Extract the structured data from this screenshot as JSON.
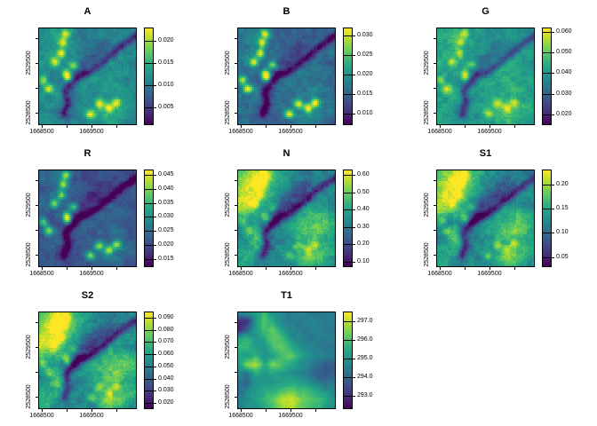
{
  "figure": {
    "background": "#ffffff",
    "description": "Grid of 8 raster map panels (multiband scene) with viridis legends"
  },
  "colormap": {
    "name": "viridis",
    "stops": [
      "#440154",
      "#472d7b",
      "#3b528b",
      "#2c728e",
      "#21918c",
      "#27ad81",
      "#5ec962",
      "#aadc32",
      "#fde725"
    ]
  },
  "axis": {
    "x_tick_labels": [
      "1668500",
      "",
      "1669500",
      ""
    ],
    "x_tick_values": [
      1668500,
      1669000,
      1669500,
      1670000
    ],
    "y_tick_labels": [
      "",
      "2529500",
      "",
      "2528500"
    ],
    "y_tick_values": [
      2530000,
      2529500,
      2529000,
      2528500
    ]
  },
  "chart_data": {
    "type": "heatmap",
    "colormap": "viridis",
    "layout": "3 columns x 3 rows, last cell empty",
    "x_range": [
      1668430,
      1670410
    ],
    "y_range": [
      2528250,
      2530210
    ],
    "panels": [
      {
        "title": "A",
        "pattern": "vis",
        "seed": 1,
        "value_range": [
          0.001,
          0.023
        ],
        "legend_tick_labels": [
          "0.005",
          "0.010",
          "0.015",
          "0.020"
        ],
        "legend_tick_values": [
          0.005,
          0.01,
          0.015,
          0.02
        ],
        "style": {
          "base": 0.02,
          "gain": 0.95,
          "hot": 0.5,
          "noise": 0.07,
          "valley": true
        }
      },
      {
        "title": "B",
        "pattern": "vis",
        "seed": 2,
        "value_range": [
          0.007,
          0.032
        ],
        "legend_tick_labels": [
          "0.010",
          "0.015",
          "0.020",
          "0.025",
          "0.030"
        ],
        "legend_tick_values": [
          0.01,
          0.015,
          0.02,
          0.025,
          0.03
        ],
        "style": {
          "base": -0.05,
          "gain": 0.85,
          "hot": 0.6,
          "noise": 0.07,
          "valley": true
        }
      },
      {
        "title": "G",
        "pattern": "vis",
        "seed": 3,
        "value_range": [
          0.015,
          0.062
        ],
        "legend_tick_labels": [
          "0.020",
          "0.030",
          "0.040",
          "0.050",
          "0.060"
        ],
        "legend_tick_values": [
          0.02,
          0.03,
          0.04,
          0.05,
          0.06
        ],
        "style": {
          "base": 0.08,
          "gain": 1.0,
          "hot": 0.35,
          "noise": 0.07,
          "valley": true
        }
      },
      {
        "title": "R",
        "pattern": "vis",
        "seed": 4,
        "value_range": [
          0.012,
          0.047
        ],
        "legend_tick_labels": [
          "0.015",
          "0.020",
          "0.025",
          "0.030",
          "0.035",
          "0.040",
          "0.045"
        ],
        "legend_tick_values": [
          0.015,
          0.02,
          0.025,
          0.03,
          0.035,
          0.04,
          0.045
        ],
        "style": {
          "base": -0.1,
          "gain": 0.8,
          "hot": 0.55,
          "noise": 0.06,
          "valley": true
        }
      },
      {
        "title": "N",
        "pattern": "nir",
        "seed": 5,
        "value_range": [
          0.07,
          0.63
        ],
        "legend_tick_labels": [
          "0.10",
          "0.20",
          "0.30",
          "0.40",
          "0.50",
          "0.60"
        ],
        "legend_tick_values": [
          0.1,
          0.2,
          0.3,
          0.4,
          0.5,
          0.6
        ],
        "style": {
          "base": 0.0,
          "gain": 1.15,
          "hot": 0.3,
          "noise": 0.08,
          "valley": true
        }
      },
      {
        "title": "S1",
        "pattern": "nir",
        "seed": 6,
        "value_range": [
          0.03,
          0.23
        ],
        "legend_tick_labels": [
          "0.05",
          "0.10",
          "0.15",
          "0.20"
        ],
        "legend_tick_values": [
          0.05,
          0.1,
          0.15,
          0.2
        ],
        "style": {
          "base": 0.0,
          "gain": 1.15,
          "hot": 0.3,
          "noise": 0.08,
          "valley": true
        }
      },
      {
        "title": "S2",
        "pattern": "nir",
        "seed": 7,
        "value_range": [
          0.015,
          0.095
        ],
        "legend_tick_labels": [
          "0.020",
          "0.030",
          "0.040",
          "0.050",
          "0.060",
          "0.070",
          "0.080",
          "0.090"
        ],
        "legend_tick_values": [
          0.02,
          0.03,
          0.04,
          0.05,
          0.06,
          0.07,
          0.08,
          0.09
        ],
        "style": {
          "base": 0.02,
          "gain": 1.15,
          "hot": 0.3,
          "noise": 0.08,
          "valley": true
        }
      },
      {
        "title": "T1",
        "pattern": "t1",
        "seed": 8,
        "value_range": [
          292.3,
          297.5
        ],
        "legend_tick_labels": [
          "293.0",
          "294.0",
          "295.0",
          "296.0",
          "297.0"
        ],
        "legend_tick_values": [
          293.0,
          294.0,
          295.0,
          296.0,
          297.0
        ],
        "style": {
          "base": 0.0,
          "gain": 1.0,
          "hot": 0.0,
          "noise": 0.03,
          "valley": false
        }
      }
    ],
    "patterns": {
      "vis": [
        [
          0.5,
          0.5,
          0.55,
          0.5,
          0.45,
          0.45,
          0.4,
          0.42,
          0.45,
          0.42,
          0.4,
          0.45
        ],
        [
          0.5,
          0.55,
          0.6,
          0.5,
          0.45,
          0.4,
          0.42,
          0.45,
          0.4,
          0.42,
          0.45,
          0.42
        ],
        [
          0.45,
          0.5,
          0.55,
          0.45,
          0.5,
          0.45,
          0.4,
          0.3,
          0.35,
          0.45,
          0.5,
          0.45
        ],
        [
          0.5,
          0.55,
          0.5,
          0.45,
          0.5,
          0.4,
          0.25,
          0.3,
          0.45,
          0.5,
          0.45,
          0.5
        ],
        [
          0.55,
          0.5,
          0.45,
          0.5,
          0.35,
          0.25,
          0.35,
          0.5,
          0.55,
          0.5,
          0.45,
          0.4
        ],
        [
          0.5,
          0.45,
          0.5,
          0.4,
          0.25,
          0.35,
          0.5,
          0.55,
          0.5,
          0.55,
          0.5,
          0.45
        ],
        [
          0.4,
          0.35,
          0.45,
          0.3,
          0.35,
          0.5,
          0.55,
          0.5,
          0.55,
          0.5,
          0.45,
          0.5
        ],
        [
          0.45,
          0.5,
          0.55,
          0.4,
          0.45,
          0.5,
          0.45,
          0.5,
          0.55,
          0.6,
          0.5,
          0.45
        ],
        [
          0.5,
          0.45,
          0.55,
          0.45,
          0.4,
          0.45,
          0.5,
          0.55,
          0.5,
          0.45,
          0.5,
          0.45
        ],
        [
          0.45,
          0.5,
          0.45,
          0.4,
          0.45,
          0.5,
          0.45,
          0.5,
          0.55,
          0.6,
          0.55,
          0.5
        ],
        [
          0.5,
          0.45,
          0.4,
          0.35,
          0.4,
          0.45,
          0.5,
          0.6,
          0.65,
          0.6,
          0.5,
          0.45
        ],
        [
          0.45,
          0.5,
          0.45,
          0.4,
          0.45,
          0.4,
          0.45,
          0.5,
          0.55,
          0.5,
          0.45,
          0.4
        ]
      ],
      "nir": [
        [
          0.6,
          0.65,
          0.8,
          0.75,
          0.55,
          0.5,
          0.45,
          0.4,
          0.35,
          0.4,
          0.35,
          0.4
        ],
        [
          0.65,
          0.75,
          0.95,
          0.85,
          0.6,
          0.5,
          0.4,
          0.35,
          0.3,
          0.35,
          0.4,
          0.35
        ],
        [
          0.7,
          0.8,
          0.9,
          0.65,
          0.55,
          0.45,
          0.35,
          0.25,
          0.2,
          0.35,
          0.45,
          0.4
        ],
        [
          0.75,
          0.85,
          0.75,
          0.6,
          0.5,
          0.35,
          0.2,
          0.15,
          0.3,
          0.45,
          0.4,
          0.45
        ],
        [
          0.8,
          0.75,
          0.65,
          0.55,
          0.35,
          0.2,
          0.15,
          0.35,
          0.5,
          0.45,
          0.4,
          0.35
        ],
        [
          0.65,
          0.6,
          0.55,
          0.4,
          0.2,
          0.15,
          0.35,
          0.5,
          0.55,
          0.6,
          0.55,
          0.5
        ],
        [
          0.4,
          0.35,
          0.45,
          0.25,
          0.15,
          0.35,
          0.5,
          0.55,
          0.6,
          0.65,
          0.6,
          0.55
        ],
        [
          0.35,
          0.4,
          0.6,
          0.35,
          0.4,
          0.45,
          0.5,
          0.55,
          0.65,
          0.7,
          0.6,
          0.5
        ],
        [
          0.4,
          0.45,
          0.65,
          0.45,
          0.35,
          0.4,
          0.45,
          0.55,
          0.6,
          0.55,
          0.5,
          0.45
        ],
        [
          0.45,
          0.5,
          0.55,
          0.4,
          0.35,
          0.45,
          0.4,
          0.45,
          0.5,
          0.55,
          0.6,
          0.55
        ],
        [
          0.5,
          0.55,
          0.45,
          0.35,
          0.4,
          0.35,
          0.4,
          0.6,
          0.75,
          0.7,
          0.55,
          0.45
        ],
        [
          0.45,
          0.5,
          0.4,
          0.35,
          0.45,
          0.4,
          0.35,
          0.5,
          0.55,
          0.5,
          0.45,
          0.4
        ]
      ],
      "t1": [
        [
          0.45,
          0.5,
          0.55,
          0.7,
          0.5,
          0.45,
          0.42,
          0.45,
          0.42,
          0.4,
          0.42,
          0.45
        ],
        [
          0.12,
          0.15,
          0.5,
          0.75,
          0.6,
          0.45,
          0.42,
          0.4,
          0.45,
          0.42,
          0.4,
          0.42
        ],
        [
          0.1,
          0.3,
          0.55,
          0.7,
          0.75,
          0.55,
          0.45,
          0.42,
          0.4,
          0.45,
          0.42,
          0.4
        ],
        [
          0.6,
          0.65,
          0.5,
          0.6,
          0.75,
          0.7,
          0.5,
          0.45,
          0.42,
          0.4,
          0.42,
          0.45
        ],
        [
          0.65,
          0.7,
          0.55,
          0.5,
          0.7,
          0.75,
          0.65,
          0.5,
          0.45,
          0.42,
          0.4,
          0.42
        ],
        [
          0.6,
          0.55,
          0.65,
          0.5,
          0.55,
          0.7,
          0.75,
          0.6,
          0.5,
          0.45,
          0.42,
          0.4
        ],
        [
          0.5,
          0.8,
          0.9,
          0.6,
          0.8,
          0.7,
          0.6,
          0.5,
          0.45,
          0.35,
          0.3,
          0.3
        ],
        [
          0.45,
          0.4,
          0.6,
          0.55,
          0.6,
          0.55,
          0.5,
          0.45,
          0.4,
          0.3,
          0.28,
          0.3
        ],
        [
          0.4,
          0.3,
          0.5,
          0.55,
          0.5,
          0.55,
          0.6,
          0.55,
          0.5,
          0.4,
          0.35,
          0.4
        ],
        [
          0.35,
          0.45,
          0.55,
          0.6,
          0.65,
          0.7,
          0.75,
          0.7,
          0.68,
          0.6,
          0.5,
          0.45
        ],
        [
          0.4,
          0.5,
          0.55,
          0.65,
          0.75,
          0.9,
          0.95,
          0.8,
          0.75,
          0.7,
          0.6,
          0.5
        ],
        [
          0.42,
          0.48,
          0.5,
          0.6,
          0.7,
          0.85,
          0.9,
          0.78,
          0.7,
          0.65,
          0.55,
          0.48
        ]
      ]
    },
    "features": {
      "valley_path": [
        [
          1.0,
          0.08
        ],
        [
          0.86,
          0.18
        ],
        [
          0.72,
          0.3
        ],
        [
          0.6,
          0.4
        ],
        [
          0.5,
          0.465
        ],
        [
          0.42,
          0.49
        ],
        [
          0.335,
          0.57
        ],
        [
          0.28,
          0.66
        ],
        [
          0.3,
          0.78
        ],
        [
          0.26,
          0.88
        ]
      ],
      "valley_strength": 0.33,
      "valley_width": 0.03,
      "hotspots": [
        [
          0.28,
          0.055
        ],
        [
          0.25,
          0.15
        ],
        [
          0.23,
          0.26
        ],
        [
          0.16,
          0.35
        ],
        [
          0.36,
          0.385
        ],
        [
          0.285,
          0.47
        ],
        [
          0.3,
          0.52
        ],
        [
          0.045,
          0.54
        ],
        [
          0.1,
          0.63
        ],
        [
          0.62,
          0.79
        ],
        [
          0.72,
          0.83
        ],
        [
          0.8,
          0.77
        ],
        [
          0.53,
          0.89
        ]
      ],
      "hotspot_radius": 0.034
    }
  }
}
